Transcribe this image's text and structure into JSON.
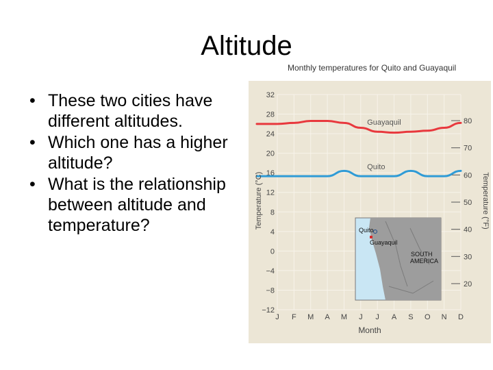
{
  "slide": {
    "title": "Altitude",
    "bullets": [
      "These two cities have different altitudes.",
      "Which one has a higher altitude?",
      "What is the relationship between altitude and temperature?"
    ]
  },
  "chart_data": {
    "type": "line",
    "title": "Monthly temperatures for Quito and Guayaquil",
    "xlabel": "Month",
    "ylabel": "Temperature (°C)",
    "y2label": "Temperature (°F)",
    "categories": [
      "J",
      "F",
      "M",
      "A",
      "M",
      "J",
      "J",
      "A",
      "S",
      "O",
      "N",
      "D"
    ],
    "ylim": [
      -12,
      32
    ],
    "yticks": [
      "32",
      "28",
      "24",
      "20",
      "16",
      "12",
      "8",
      "4",
      "0",
      "−4",
      "−8",
      "−12"
    ],
    "y2ticks": [
      "80",
      "70",
      "60",
      "50",
      "40",
      "30",
      "20"
    ],
    "grid": true,
    "series": [
      {
        "name": "Guayaquil",
        "color": "#e8383d",
        "values": [
          26.0,
          26.2,
          26.6,
          26.6,
          26.2,
          25.2,
          24.4,
          24.2,
          24.4,
          24.6,
          25.2,
          26.2
        ]
      },
      {
        "name": "Quito",
        "color": "#2f9bd6",
        "values": [
          15.3,
          15.3,
          15.3,
          15.3,
          16.4,
          15.3,
          15.3,
          15.3,
          16.4,
          15.3,
          15.3,
          16.4
        ]
      }
    ],
    "inset_map": {
      "labels": [
        "Quito",
        "Guayaquil",
        "SOUTH",
        "AMERICA"
      ]
    }
  }
}
